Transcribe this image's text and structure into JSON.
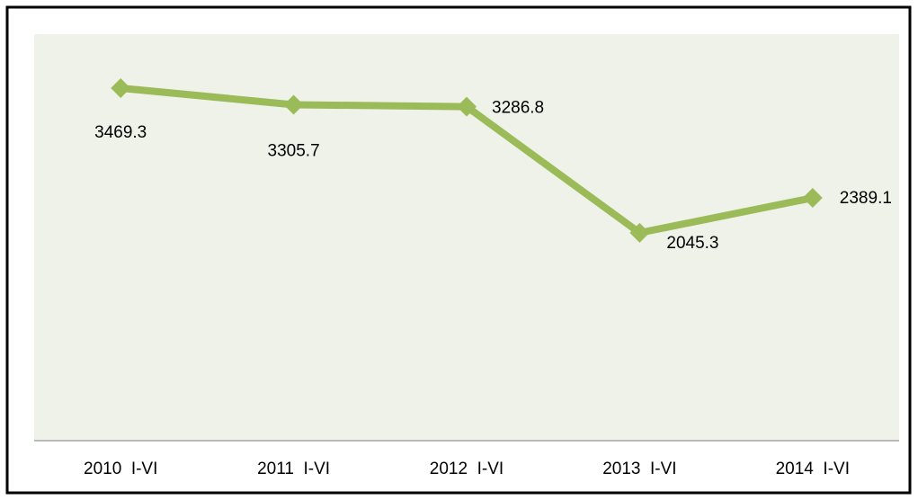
{
  "chart_data": {
    "type": "line",
    "categories": [
      "2010  I-VI",
      "2011  I-VI",
      "2012  I-VI",
      "2013  I-VI",
      "2014  I-VI"
    ],
    "series": [
      {
        "color": "#9bbb59",
        "values": [
          3469.3,
          3305.7,
          3286.8,
          2045.3,
          2389.1
        ]
      }
    ],
    "ylim": [
      0,
      4000
    ]
  }
}
